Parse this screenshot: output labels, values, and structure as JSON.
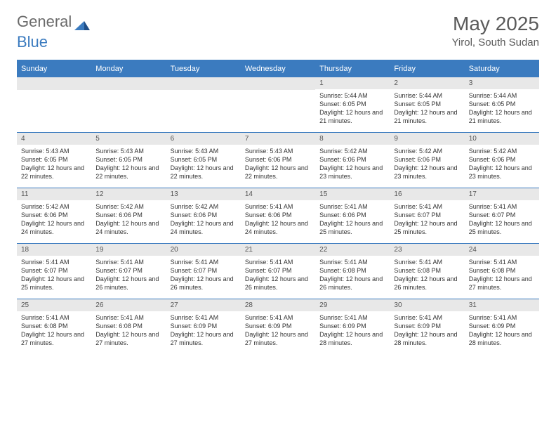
{
  "brand": {
    "part1": "General",
    "part2": "Blue"
  },
  "title": "May 2025",
  "location": "Yirol, South Sudan",
  "colors": {
    "accent": "#3b7bbf",
    "header_bg": "#3b7bbf",
    "header_text": "#ffffff",
    "daynum_bg": "#e8e8e8",
    "text": "#333333",
    "muted": "#5a5a5a"
  },
  "days_of_week": [
    "Sunday",
    "Monday",
    "Tuesday",
    "Wednesday",
    "Thursday",
    "Friday",
    "Saturday"
  ],
  "weeks": [
    [
      null,
      null,
      null,
      null,
      {
        "d": "1",
        "sr": "5:44 AM",
        "ss": "6:05 PM",
        "dl": "12 hours and 21 minutes."
      },
      {
        "d": "2",
        "sr": "5:44 AM",
        "ss": "6:05 PM",
        "dl": "12 hours and 21 minutes."
      },
      {
        "d": "3",
        "sr": "5:44 AM",
        "ss": "6:05 PM",
        "dl": "12 hours and 21 minutes."
      }
    ],
    [
      {
        "d": "4",
        "sr": "5:43 AM",
        "ss": "6:05 PM",
        "dl": "12 hours and 22 minutes."
      },
      {
        "d": "5",
        "sr": "5:43 AM",
        "ss": "6:05 PM",
        "dl": "12 hours and 22 minutes."
      },
      {
        "d": "6",
        "sr": "5:43 AM",
        "ss": "6:05 PM",
        "dl": "12 hours and 22 minutes."
      },
      {
        "d": "7",
        "sr": "5:43 AM",
        "ss": "6:06 PM",
        "dl": "12 hours and 22 minutes."
      },
      {
        "d": "8",
        "sr": "5:42 AM",
        "ss": "6:06 PM",
        "dl": "12 hours and 23 minutes."
      },
      {
        "d": "9",
        "sr": "5:42 AM",
        "ss": "6:06 PM",
        "dl": "12 hours and 23 minutes."
      },
      {
        "d": "10",
        "sr": "5:42 AM",
        "ss": "6:06 PM",
        "dl": "12 hours and 23 minutes."
      }
    ],
    [
      {
        "d": "11",
        "sr": "5:42 AM",
        "ss": "6:06 PM",
        "dl": "12 hours and 24 minutes."
      },
      {
        "d": "12",
        "sr": "5:42 AM",
        "ss": "6:06 PM",
        "dl": "12 hours and 24 minutes."
      },
      {
        "d": "13",
        "sr": "5:42 AM",
        "ss": "6:06 PM",
        "dl": "12 hours and 24 minutes."
      },
      {
        "d": "14",
        "sr": "5:41 AM",
        "ss": "6:06 PM",
        "dl": "12 hours and 24 minutes."
      },
      {
        "d": "15",
        "sr": "5:41 AM",
        "ss": "6:06 PM",
        "dl": "12 hours and 25 minutes."
      },
      {
        "d": "16",
        "sr": "5:41 AM",
        "ss": "6:07 PM",
        "dl": "12 hours and 25 minutes."
      },
      {
        "d": "17",
        "sr": "5:41 AM",
        "ss": "6:07 PM",
        "dl": "12 hours and 25 minutes."
      }
    ],
    [
      {
        "d": "18",
        "sr": "5:41 AM",
        "ss": "6:07 PM",
        "dl": "12 hours and 25 minutes."
      },
      {
        "d": "19",
        "sr": "5:41 AM",
        "ss": "6:07 PM",
        "dl": "12 hours and 26 minutes."
      },
      {
        "d": "20",
        "sr": "5:41 AM",
        "ss": "6:07 PM",
        "dl": "12 hours and 26 minutes."
      },
      {
        "d": "21",
        "sr": "5:41 AM",
        "ss": "6:07 PM",
        "dl": "12 hours and 26 minutes."
      },
      {
        "d": "22",
        "sr": "5:41 AM",
        "ss": "6:08 PM",
        "dl": "12 hours and 26 minutes."
      },
      {
        "d": "23",
        "sr": "5:41 AM",
        "ss": "6:08 PM",
        "dl": "12 hours and 26 minutes."
      },
      {
        "d": "24",
        "sr": "5:41 AM",
        "ss": "6:08 PM",
        "dl": "12 hours and 27 minutes."
      }
    ],
    [
      {
        "d": "25",
        "sr": "5:41 AM",
        "ss": "6:08 PM",
        "dl": "12 hours and 27 minutes."
      },
      {
        "d": "26",
        "sr": "5:41 AM",
        "ss": "6:08 PM",
        "dl": "12 hours and 27 minutes."
      },
      {
        "d": "27",
        "sr": "5:41 AM",
        "ss": "6:09 PM",
        "dl": "12 hours and 27 minutes."
      },
      {
        "d": "28",
        "sr": "5:41 AM",
        "ss": "6:09 PM",
        "dl": "12 hours and 27 minutes."
      },
      {
        "d": "29",
        "sr": "5:41 AM",
        "ss": "6:09 PM",
        "dl": "12 hours and 28 minutes."
      },
      {
        "d": "30",
        "sr": "5:41 AM",
        "ss": "6:09 PM",
        "dl": "12 hours and 28 minutes."
      },
      {
        "d": "31",
        "sr": "5:41 AM",
        "ss": "6:09 PM",
        "dl": "12 hours and 28 minutes."
      }
    ]
  ],
  "labels": {
    "sunrise": "Sunrise: ",
    "sunset": "Sunset: ",
    "daylight": "Daylight: "
  }
}
